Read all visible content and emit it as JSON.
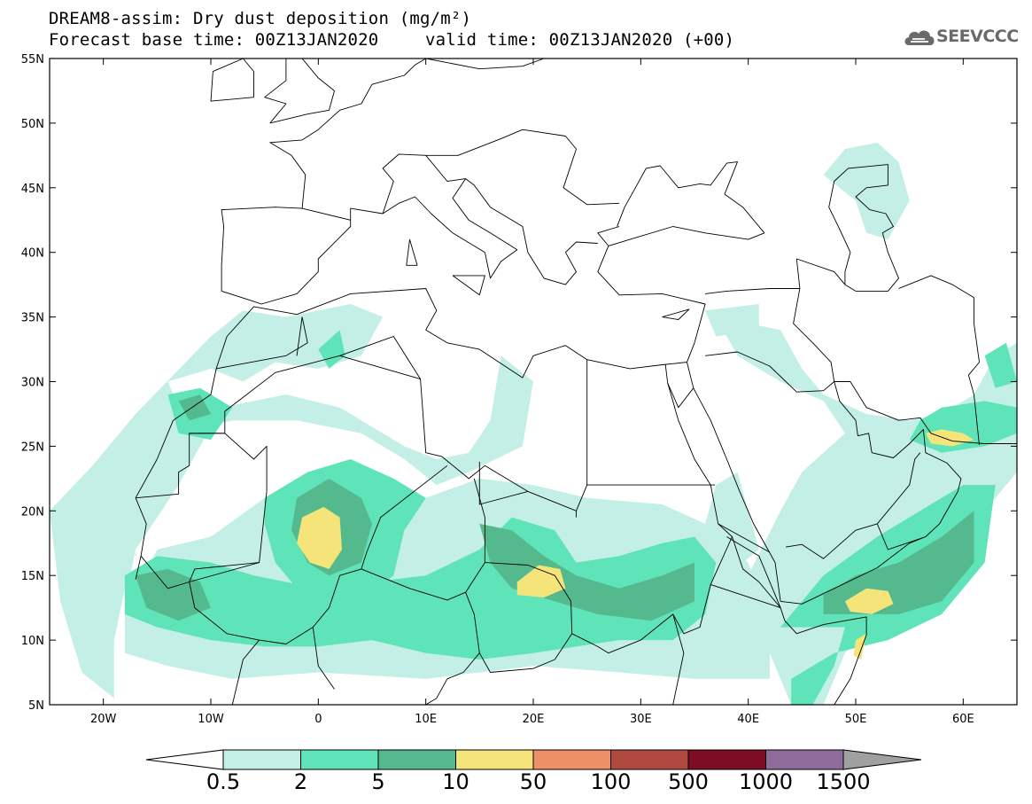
{
  "header": {
    "title_line1": "DREAM8-assim: Dry dust deposition (mg/m²)",
    "title_line2_left": "Forecast base time: 00Z13JAN2020",
    "title_line2_right": "valid time: 00Z13JAN2020 (+00)",
    "logo_text": "SEEVCCC",
    "logo_icon": "cloud-icon"
  },
  "map": {
    "projection": "lat-lon",
    "lon_range": [
      -25,
      65
    ],
    "lat_range": [
      5,
      55
    ],
    "y_ticks": [
      {
        "lat": 55,
        "label": "55N"
      },
      {
        "lat": 50,
        "label": "50N"
      },
      {
        "lat": 45,
        "label": "45N"
      },
      {
        "lat": 40,
        "label": "40N"
      },
      {
        "lat": 35,
        "label": "35N"
      },
      {
        "lat": 30,
        "label": "30N"
      },
      {
        "lat": 25,
        "label": "25N"
      },
      {
        "lat": 20,
        "label": "20N"
      },
      {
        "lat": 15,
        "label": "15N"
      },
      {
        "lat": 10,
        "label": "10N"
      },
      {
        "lat": 5,
        "label": "5N"
      }
    ],
    "x_ticks": [
      {
        "lon": -20,
        "label": "20W"
      },
      {
        "lon": -10,
        "label": "10W"
      },
      {
        "lon": 0,
        "label": "0"
      },
      {
        "lon": 10,
        "label": "10E"
      },
      {
        "lon": 20,
        "label": "20E"
      },
      {
        "lon": 30,
        "label": "30E"
      },
      {
        "lon": 40,
        "label": "40E"
      },
      {
        "lon": 50,
        "label": "50E"
      },
      {
        "lon": 60,
        "label": "60E"
      }
    ],
    "deposition_patches": [
      {
        "level": 0,
        "pts": [
          [
            -25,
            20
          ],
          [
            -24,
            13
          ],
          [
            -22,
            7.5
          ],
          [
            -19,
            5.5
          ],
          [
            -19,
            10
          ],
          [
            -17,
            18
          ],
          [
            -15,
            21
          ],
          [
            -13,
            24
          ],
          [
            -12.5,
            27
          ],
          [
            -14,
            30
          ],
          [
            -10,
            31
          ],
          [
            -7,
            30
          ],
          [
            -4,
            31.5
          ],
          [
            0,
            31
          ],
          [
            4,
            32
          ],
          [
            6,
            35
          ],
          [
            3,
            36
          ],
          [
            -3,
            35
          ],
          [
            -7,
            35.5
          ],
          [
            -10,
            33.5
          ],
          [
            -17,
            27.5
          ],
          [
            -21,
            23.5
          ]
        ]
      },
      {
        "level": 0,
        "pts": [
          [
            -17,
            22
          ],
          [
            -13,
            26
          ],
          [
            -8,
            27
          ],
          [
            -2,
            27
          ],
          [
            4,
            26
          ],
          [
            8,
            24
          ],
          [
            11,
            22
          ],
          [
            14,
            23
          ],
          [
            19,
            25
          ],
          [
            20,
            30
          ],
          [
            17,
            32
          ],
          [
            16,
            27
          ],
          [
            14,
            24.5
          ],
          [
            11,
            24
          ],
          [
            8,
            25
          ],
          [
            2,
            28
          ],
          [
            -3,
            29
          ],
          [
            -9,
            28
          ],
          [
            -13,
            22
          ],
          [
            -17,
            17
          ],
          [
            -18,
            13
          ]
        ]
      },
      {
        "level": 0,
        "pts": [
          [
            -18,
            12
          ],
          [
            -15,
            17
          ],
          [
            -10,
            18
          ],
          [
            -5,
            21
          ],
          [
            0,
            22.5
          ],
          [
            5,
            22
          ],
          [
            10,
            21
          ],
          [
            15,
            22.5
          ],
          [
            20,
            22
          ],
          [
            25,
            21
          ],
          [
            32,
            20.5
          ],
          [
            36,
            19
          ],
          [
            40,
            16
          ],
          [
            42,
            11
          ],
          [
            42,
            7
          ],
          [
            35,
            7
          ],
          [
            28,
            7.5
          ],
          [
            20,
            8
          ],
          [
            10,
            7
          ],
          [
            0,
            7.5
          ],
          [
            -8,
            7
          ],
          [
            -14,
            8
          ],
          [
            -18,
            9
          ]
        ]
      },
      {
        "level": 0,
        "pts": [
          [
            37,
            35
          ],
          [
            43,
            34
          ],
          [
            45,
            31
          ],
          [
            47,
            29
          ],
          [
            51,
            27.5
          ],
          [
            55,
            27
          ],
          [
            58,
            27.5
          ],
          [
            61,
            29
          ],
          [
            63,
            32
          ],
          [
            65,
            33
          ],
          [
            65,
            23
          ],
          [
            62,
            20
          ],
          [
            58,
            15
          ],
          [
            53,
            12
          ],
          [
            49,
            9
          ],
          [
            47,
            5
          ],
          [
            44,
            5
          ],
          [
            42,
            9
          ],
          [
            40,
            15
          ],
          [
            43,
            20
          ],
          [
            45,
            23
          ],
          [
            49,
            26
          ],
          [
            47,
            28.5
          ],
          [
            43,
            30
          ],
          [
            39,
            32
          ]
        ]
      },
      {
        "level": 0,
        "pts": [
          [
            40,
            20
          ],
          [
            41,
            17
          ],
          [
            38,
            15
          ],
          [
            36,
            19
          ],
          [
            37,
            22
          ],
          [
            39,
            23
          ]
        ]
      },
      {
        "level": 0,
        "pts": [
          [
            47,
            46
          ],
          [
            49,
            48
          ],
          [
            52,
            48.5
          ],
          [
            54,
            47
          ],
          [
            55,
            44
          ],
          [
            53,
            41
          ],
          [
            51,
            41.5
          ],
          [
            50,
            44
          ]
        ]
      },
      {
        "level": 0,
        "pts": [
          [
            36,
            35.5
          ],
          [
            41,
            36
          ],
          [
            41,
            34
          ],
          [
            37,
            33.5
          ]
        ]
      },
      {
        "level": 1,
        "pts": [
          [
            -5,
            21
          ],
          [
            -1,
            23
          ],
          [
            3,
            24
          ],
          [
            7,
            22.5
          ],
          [
            10,
            21
          ],
          [
            8,
            18.5
          ],
          [
            7,
            15
          ],
          [
            4,
            13
          ],
          [
            0,
            12.5
          ],
          [
            -2,
            14
          ],
          [
            -4,
            16
          ],
          [
            -5,
            19
          ]
        ]
      },
      {
        "level": 1,
        "pts": [
          [
            -18,
            15
          ],
          [
            -15,
            16.5
          ],
          [
            -10,
            16
          ],
          [
            -6,
            15
          ],
          [
            0,
            14
          ],
          [
            5,
            14.5
          ],
          [
            10,
            15
          ],
          [
            15,
            17
          ],
          [
            18,
            19.5
          ],
          [
            22,
            18.5
          ],
          [
            24,
            16
          ],
          [
            28,
            16.5
          ],
          [
            32,
            17.5
          ],
          [
            35,
            18
          ],
          [
            37,
            16
          ],
          [
            36,
            12
          ],
          [
            33,
            10
          ],
          [
            28,
            10
          ],
          [
            24,
            9.5
          ],
          [
            20,
            9
          ],
          [
            15,
            8.5
          ],
          [
            10,
            9
          ],
          [
            5,
            10
          ],
          [
            0,
            9.5
          ],
          [
            -5,
            9.5
          ],
          [
            -10,
            10
          ],
          [
            -15,
            11
          ],
          [
            -18,
            12
          ]
        ]
      },
      {
        "level": 1,
        "pts": [
          [
            -14,
            29
          ],
          [
            -11,
            29.5
          ],
          [
            -8,
            28
          ],
          [
            -10,
            25.5
          ],
          [
            -13,
            26
          ]
        ]
      },
      {
        "level": 1,
        "pts": [
          [
            43,
            11
          ],
          [
            47,
            15
          ],
          [
            52,
            18
          ],
          [
            56,
            20
          ],
          [
            60,
            22
          ],
          [
            63,
            22
          ],
          [
            62,
            16
          ],
          [
            58,
            12
          ],
          [
            53,
            10
          ],
          [
            48,
            9
          ],
          [
            44,
            7
          ],
          [
            44,
            5
          ],
          [
            46,
            5
          ],
          [
            48,
            8
          ],
          [
            49,
            11
          ],
          [
            46,
            11
          ]
        ]
      },
      {
        "level": 1,
        "pts": [
          [
            56,
            27
          ],
          [
            58,
            28
          ],
          [
            62,
            28.5
          ],
          [
            65,
            28
          ],
          [
            65,
            26
          ],
          [
            62,
            25
          ],
          [
            58,
            24.5
          ],
          [
            55,
            25.5
          ]
        ]
      },
      {
        "level": 1,
        "pts": [
          [
            62,
            32
          ],
          [
            64,
            33
          ],
          [
            65,
            30
          ],
          [
            63,
            29.5
          ]
        ]
      },
      {
        "level": 1,
        "pts": [
          [
            0,
            32.5
          ],
          [
            2,
            34
          ],
          [
            2.5,
            32
          ],
          [
            1,
            31
          ]
        ]
      },
      {
        "level": 2,
        "pts": [
          [
            -2,
            21
          ],
          [
            1,
            22.5
          ],
          [
            4,
            21
          ],
          [
            5,
            19
          ],
          [
            4,
            16
          ],
          [
            1,
            15
          ],
          [
            -1,
            16
          ],
          [
            -2.5,
            18.5
          ]
        ]
      },
      {
        "level": 2,
        "pts": [
          [
            -17,
            15
          ],
          [
            -14,
            15.5
          ],
          [
            -11,
            14.5
          ],
          [
            -10,
            12.5
          ],
          [
            -13,
            11.5
          ],
          [
            -16,
            12.5
          ]
        ]
      },
      {
        "level": 2,
        "pts": [
          [
            15,
            19
          ],
          [
            18,
            18.5
          ],
          [
            21,
            16.5
          ],
          [
            24,
            15
          ],
          [
            28,
            14
          ],
          [
            32,
            15
          ],
          [
            35,
            16
          ],
          [
            35,
            13
          ],
          [
            31,
            11.5
          ],
          [
            26,
            12
          ],
          [
            22,
            13
          ],
          [
            18,
            14
          ],
          [
            16,
            16
          ]
        ]
      },
      {
        "level": 2,
        "pts": [
          [
            47,
            13.5
          ],
          [
            50,
            15
          ],
          [
            54,
            16
          ],
          [
            58,
            18
          ],
          [
            61,
            20
          ],
          [
            61,
            16
          ],
          [
            58,
            13
          ],
          [
            54,
            12
          ],
          [
            50,
            12
          ],
          [
            47,
            12
          ]
        ]
      },
      {
        "level": 2,
        "pts": [
          [
            -13,
            28.5
          ],
          [
            -11,
            29
          ],
          [
            -10,
            27.5
          ],
          [
            -12,
            27
          ]
        ]
      },
      {
        "level": 3,
        "pts": [
          [
            -1.5,
            19.5
          ],
          [
            0.5,
            20.3
          ],
          [
            2,
            19.5
          ],
          [
            2.2,
            17
          ],
          [
            1,
            15.5
          ],
          [
            -0.8,
            16
          ],
          [
            -2,
            17.5
          ]
        ]
      },
      {
        "level": 3,
        "pts": [
          [
            18.5,
            14.5
          ],
          [
            20.5,
            15.8
          ],
          [
            22.5,
            15.5
          ],
          [
            23,
            14
          ],
          [
            21,
            13.3
          ],
          [
            18.5,
            13.5
          ]
        ]
      },
      {
        "level": 3,
        "pts": [
          [
            49,
            13
          ],
          [
            51,
            14
          ],
          [
            53,
            13.8
          ],
          [
            53.5,
            12.8
          ],
          [
            51.5,
            12
          ],
          [
            49.5,
            12.2
          ]
        ]
      },
      {
        "level": 3,
        "pts": [
          [
            56.5,
            26
          ],
          [
            58,
            26.3
          ],
          [
            60,
            26
          ],
          [
            61,
            25.5
          ],
          [
            59,
            25
          ],
          [
            57,
            25.2
          ]
        ]
      },
      {
        "level": 3,
        "pts": [
          [
            50,
            10
          ],
          [
            51,
            10.5
          ],
          [
            50.5,
            8.5
          ],
          [
            49.8,
            8.8
          ]
        ]
      }
    ]
  },
  "colorbar": {
    "colors": [
      "#c3efe6",
      "#5fe3b8",
      "#55b98e",
      "#f4e47a",
      "#ec9068",
      "#b04a3e",
      "#7c0d22",
      "#8f6b9b",
      "#a0a0a0"
    ],
    "labels": [
      "0.5",
      "2",
      "5",
      "10",
      "50",
      "100",
      "500",
      "1000",
      "1500"
    ],
    "left_arrow_color": "#ffffff"
  }
}
